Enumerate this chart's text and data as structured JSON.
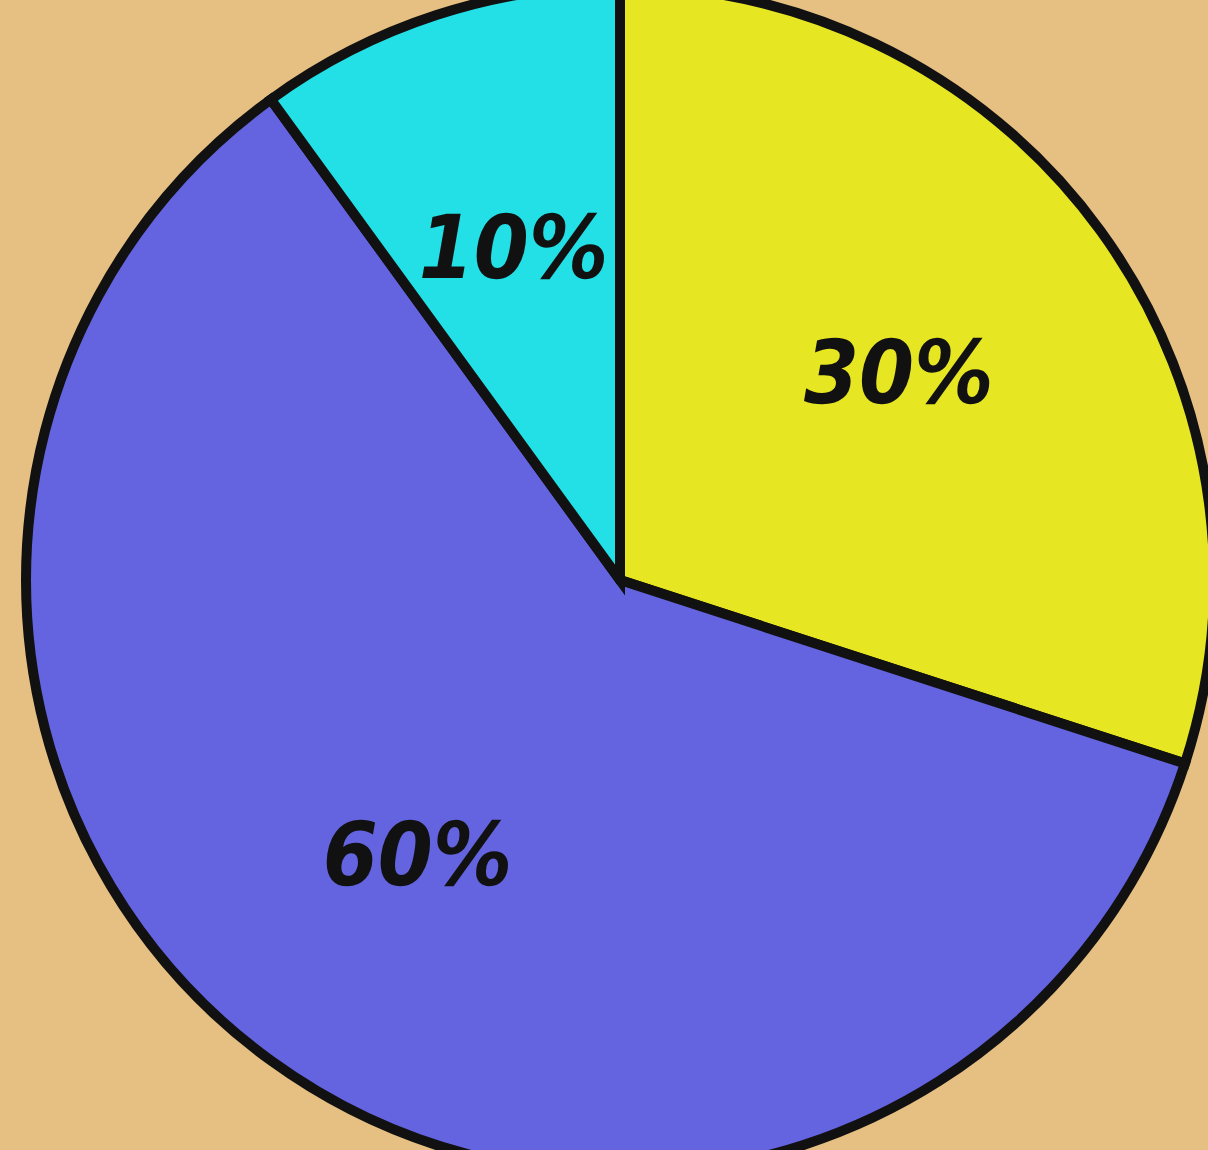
{
  "chart_data": {
    "type": "pie",
    "categories": [
      null,
      null,
      null
    ],
    "values": [
      30,
      60,
      10
    ],
    "colors": [
      "#e6e622",
      "#6464e0",
      "#22e0e6"
    ],
    "value_labels": [
      "30%",
      "60%",
      "10%"
    ]
  }
}
